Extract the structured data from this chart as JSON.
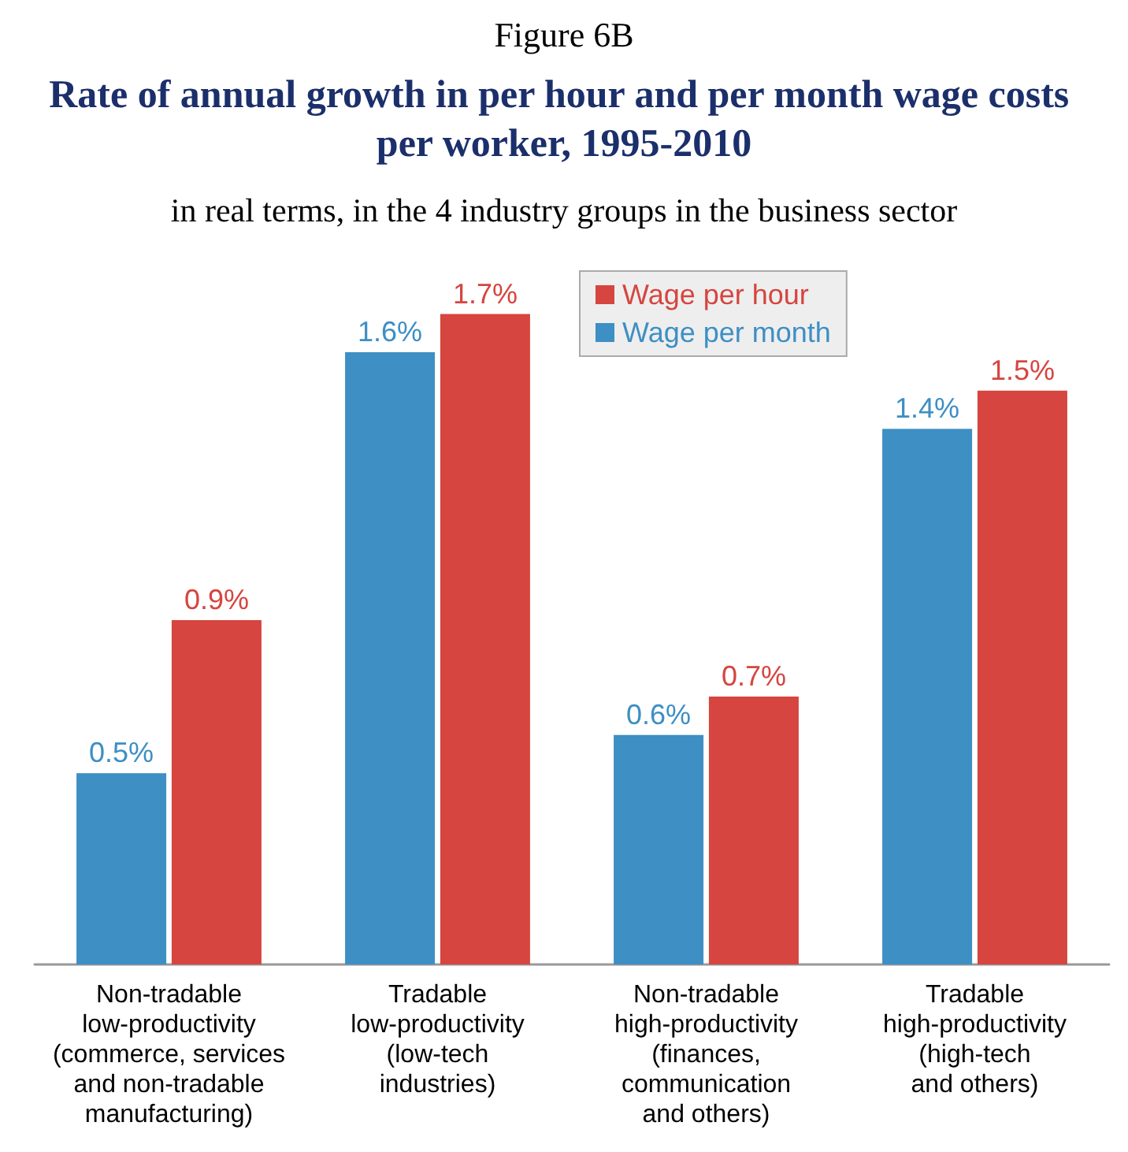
{
  "chart_data": {
    "type": "bar",
    "title": "Rate of annual growth in per hour and per month wage costs per worker, 1995-2010",
    "subtitle": "in real terms, in the 4 industry groups in the business sector",
    "annotations": [
      "Figure 6B"
    ],
    "categories": [
      "Non-tradable\nlow-productivity\n(commerce, services\nand non-tradable\nmanufacturing)",
      "Tradable\nlow-productivity\n(low-tech\nindustries)",
      "Non-tradable\nhigh-productivity\n(finances,\ncommunication\nand others)",
      "Tradable\nhigh-productivity\n(high-tech\nand others)"
    ],
    "series": [
      {
        "name": "Wage per month",
        "color": "#3d8fc4",
        "values": [
          0.5,
          1.6,
          0.6,
          1.4
        ],
        "value_labels": [
          "0.5%",
          "1.6%",
          "0.6%",
          "1.4%"
        ]
      },
      {
        "name": "Wage per hour",
        "color": "#d6453f",
        "values": [
          0.9,
          1.7,
          0.7,
          1.5
        ],
        "value_labels": [
          "0.9%",
          "1.7%",
          "0.7%",
          "1.5%"
        ]
      }
    ],
    "legend": "top"
  }
}
